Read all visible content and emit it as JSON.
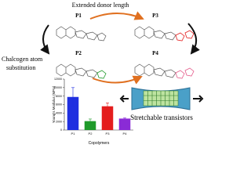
{
  "top_label": "Extended donor length",
  "side_label": [
    "Chalcogen atom",
    "substitution"
  ],
  "device_label": "Stretchable transistors",
  "polymers": [
    "P1",
    "P2",
    "P3",
    "P4"
  ],
  "chart_data": {
    "type": "bar",
    "y_label": "Young's Modulus (MPa)",
    "x_label": "Copolymers",
    "categories": [
      "P1",
      "P2",
      "P3",
      "P4"
    ],
    "values": [
      7800,
      2100,
      5600,
      2700
    ],
    "errors": [
      2200,
      500,
      800,
      200
    ],
    "colors": [
      "#1f2fe0",
      "#1f9a2a",
      "#e41d1d",
      "#8a2bd6"
    ],
    "ylim": [
      0,
      12000
    ],
    "yticks": [
      0,
      2000,
      4000,
      6000,
      8000,
      10000,
      12000
    ]
  }
}
